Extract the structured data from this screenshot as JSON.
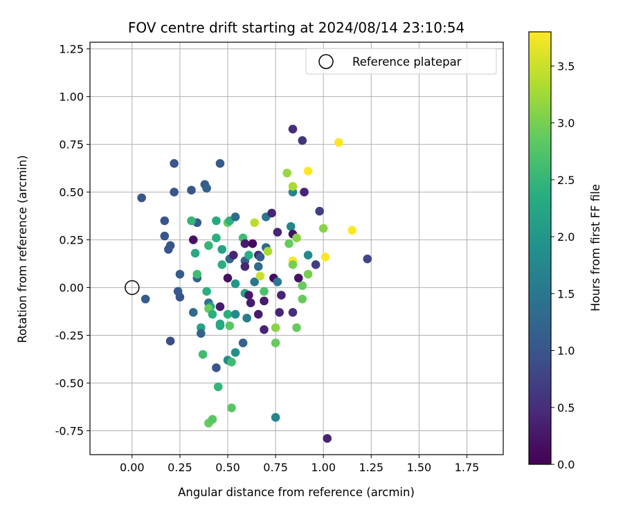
{
  "chart_data": {
    "type": "scatter",
    "title": "FOV centre drift starting at 2024/08/14 23:10:54",
    "xlabel": "Angular distance from reference (arcmin)",
    "ylabel": "Rotation from reference (arcmin)",
    "xlim": [
      -0.22,
      1.94
    ],
    "ylim": [
      -0.875,
      1.285
    ],
    "xticks": [
      "0.00",
      "0.25",
      "0.50",
      "0.75",
      "1.00",
      "1.25",
      "1.50",
      "1.75"
    ],
    "xtick_values": [
      0,
      0.25,
      0.5,
      0.75,
      1.0,
      1.25,
      1.5,
      1.75
    ],
    "yticks": [
      "1.25",
      "1.00",
      "0.75",
      "0.50",
      "0.25",
      "0.00",
      "-0.25",
      "-0.50",
      "-0.75"
    ],
    "ytick_values": [
      1.25,
      1.0,
      0.75,
      0.5,
      0.25,
      0.0,
      -0.25,
      -0.5,
      -0.75
    ],
    "grid": true,
    "legend": {
      "placement": "top-right",
      "entries": [
        {
          "marker": "open-circle",
          "label": "Reference platepar"
        }
      ]
    },
    "reference_point": {
      "x": 0.0,
      "y": 0.0
    },
    "colorbar": {
      "label": "Hours from first FF file",
      "colormap": "viridis",
      "range": [
        0,
        3.8
      ],
      "ticks": [
        "0.0",
        "0.5",
        "1.0",
        "1.5",
        "2.0",
        "2.5",
        "3.0",
        "3.5"
      ],
      "tick_values": [
        0.0,
        0.5,
        1.0,
        1.5,
        2.0,
        2.5,
        3.0,
        3.5
      ]
    },
    "points": [
      {
        "x": 0.05,
        "y": 0.47,
        "c": 1.0
      },
      {
        "x": 0.07,
        "y": -0.06,
        "c": 1.1
      },
      {
        "x": 0.19,
        "y": 0.2,
        "c": 1.0
      },
      {
        "x": 0.2,
        "y": 0.22,
        "c": 1.0
      },
      {
        "x": 0.17,
        "y": 0.35,
        "c": 1.0
      },
      {
        "x": 0.17,
        "y": 0.27,
        "c": 1.0
      },
      {
        "x": 0.22,
        "y": 0.65,
        "c": 1.0
      },
      {
        "x": 0.22,
        "y": 0.5,
        "c": 1.0
      },
      {
        "x": 0.2,
        "y": -0.28,
        "c": 0.9
      },
      {
        "x": 0.25,
        "y": 0.07,
        "c": 1.1
      },
      {
        "x": 0.24,
        "y": -0.02,
        "c": 1.1
      },
      {
        "x": 0.25,
        "y": -0.05,
        "c": 1.0
      },
      {
        "x": 0.31,
        "y": 0.51,
        "c": 1.0
      },
      {
        "x": 0.32,
        "y": 0.25,
        "c": 0.2
      },
      {
        "x": 0.32,
        "y": -0.13,
        "c": 1.3
      },
      {
        "x": 0.34,
        "y": 0.34,
        "c": 1.1
      },
      {
        "x": 0.34,
        "y": 0.05,
        "c": 1.2
      },
      {
        "x": 0.31,
        "y": 0.35,
        "c": 2.5
      },
      {
        "x": 0.33,
        "y": 0.18,
        "c": 2.3
      },
      {
        "x": 0.34,
        "y": 0.07,
        "c": 2.6
      },
      {
        "x": 0.36,
        "y": -0.21,
        "c": 2.2
      },
      {
        "x": 0.36,
        "y": -0.24,
        "c": 1.2
      },
      {
        "x": 0.37,
        "y": -0.35,
        "c": 2.6
      },
      {
        "x": 0.38,
        "y": 0.54,
        "c": 1.1
      },
      {
        "x": 0.39,
        "y": 0.52,
        "c": 1.2
      },
      {
        "x": 0.39,
        "y": -0.02,
        "c": 2.4
      },
      {
        "x": 0.4,
        "y": 0.22,
        "c": 2.5
      },
      {
        "x": 0.4,
        "y": -0.08,
        "c": 1.4
      },
      {
        "x": 0.41,
        "y": -0.1,
        "c": 2.2
      },
      {
        "x": 0.4,
        "y": -0.11,
        "c": 2.9
      },
      {
        "x": 0.42,
        "y": -0.14,
        "c": 2.4
      },
      {
        "x": 0.4,
        "y": -0.71,
        "c": 2.9
      },
      {
        "x": 0.42,
        "y": -0.69,
        "c": 2.8
      },
      {
        "x": 0.44,
        "y": 0.26,
        "c": 2.4
      },
      {
        "x": 0.44,
        "y": 0.35,
        "c": 2.3
      },
      {
        "x": 0.44,
        "y": -0.42,
        "c": 1.0
      },
      {
        "x": 0.46,
        "y": 0.65,
        "c": 1.1
      },
      {
        "x": 0.46,
        "y": -0.1,
        "c": 0.3
      },
      {
        "x": 0.46,
        "y": -0.19,
        "c": 2.3
      },
      {
        "x": 0.46,
        "y": -0.2,
        "c": 2.3
      },
      {
        "x": 0.47,
        "y": 0.12,
        "c": 2.4
      },
      {
        "x": 0.47,
        "y": 0.2,
        "c": 2.2
      },
      {
        "x": 0.45,
        "y": -0.52,
        "c": 2.5
      },
      {
        "x": 0.5,
        "y": 0.34,
        "c": 2.9
      },
      {
        "x": 0.51,
        "y": 0.35,
        "c": 2.4
      },
      {
        "x": 0.5,
        "y": 0.05,
        "c": 0.2
      },
      {
        "x": 0.5,
        "y": -0.14,
        "c": 2.4
      },
      {
        "x": 0.51,
        "y": -0.2,
        "c": 2.8
      },
      {
        "x": 0.5,
        "y": -0.38,
        "c": 1.8
      },
      {
        "x": 0.51,
        "y": 0.15,
        "c": 1.2
      },
      {
        "x": 0.53,
        "y": 0.17,
        "c": 0.4
      },
      {
        "x": 0.52,
        "y": -0.39,
        "c": 2.6
      },
      {
        "x": 0.52,
        "y": -0.63,
        "c": 2.8
      },
      {
        "x": 0.54,
        "y": 0.37,
        "c": 1.3
      },
      {
        "x": 0.54,
        "y": 0.02,
        "c": 2.0
      },
      {
        "x": 0.54,
        "y": -0.14,
        "c": 1.8
      },
      {
        "x": 0.54,
        "y": -0.34,
        "c": 1.9
      },
      {
        "x": 0.58,
        "y": 0.26,
        "c": 2.6
      },
      {
        "x": 0.59,
        "y": 0.23,
        "c": 0.3
      },
      {
        "x": 0.59,
        "y": 0.14,
        "c": 1.2
      },
      {
        "x": 0.59,
        "y": 0.11,
        "c": 0.4
      },
      {
        "x": 0.58,
        "y": -0.29,
        "c": 1.2
      },
      {
        "x": 0.59,
        "y": -0.03,
        "c": 2.2
      },
      {
        "x": 0.6,
        "y": -0.16,
        "c": 1.6
      },
      {
        "x": 0.61,
        "y": 0.17,
        "c": 2.4
      },
      {
        "x": 0.61,
        "y": -0.04,
        "c": 0.3
      },
      {
        "x": 0.62,
        "y": -0.08,
        "c": 0.3
      },
      {
        "x": 0.63,
        "y": 0.23,
        "c": 0.1
      },
      {
        "x": 0.64,
        "y": 0.03,
        "c": 1.5
      },
      {
        "x": 0.64,
        "y": 0.34,
        "c": 3.4
      },
      {
        "x": 0.66,
        "y": 0.17,
        "c": 0.4
      },
      {
        "x": 0.66,
        "y": 0.11,
        "c": 1.3
      },
      {
        "x": 0.67,
        "y": 0.06,
        "c": 3.5
      },
      {
        "x": 0.67,
        "y": 0.16,
        "c": 1.1
      },
      {
        "x": 0.66,
        "y": -0.14,
        "c": 0.3
      },
      {
        "x": 0.69,
        "y": -0.07,
        "c": 0.3
      },
      {
        "x": 0.69,
        "y": -0.02,
        "c": 2.7
      },
      {
        "x": 0.7,
        "y": 0.21,
        "c": 1.3
      },
      {
        "x": 0.69,
        "y": -0.22,
        "c": 0.4
      },
      {
        "x": 0.7,
        "y": 0.37,
        "c": 1.5
      },
      {
        "x": 0.71,
        "y": 0.19,
        "c": 3.3
      },
      {
        "x": 0.73,
        "y": 0.39,
        "c": 0.4
      },
      {
        "x": 0.74,
        "y": 0.05,
        "c": 0.1
      },
      {
        "x": 0.75,
        "y": -0.21,
        "c": 3.1
      },
      {
        "x": 0.75,
        "y": -0.29,
        "c": 2.9
      },
      {
        "x": 0.76,
        "y": 0.29,
        "c": 0.4
      },
      {
        "x": 0.76,
        "y": 0.03,
        "c": 1.5
      },
      {
        "x": 0.75,
        "y": -0.68,
        "c": 1.7
      },
      {
        "x": 0.77,
        "y": -0.13,
        "c": 0.4
      },
      {
        "x": 0.78,
        "y": -0.04,
        "c": 0.4
      },
      {
        "x": 0.81,
        "y": 0.6,
        "c": 3.2
      },
      {
        "x": 0.82,
        "y": 0.23,
        "c": 2.9
      },
      {
        "x": 0.83,
        "y": 0.32,
        "c": 1.7
      },
      {
        "x": 0.84,
        "y": 0.5,
        "c": 1.7
      },
      {
        "x": 0.84,
        "y": 0.53,
        "c": 3.3
      },
      {
        "x": 0.84,
        "y": 0.83,
        "c": 0.5
      },
      {
        "x": 0.84,
        "y": 0.28,
        "c": 0.2
      },
      {
        "x": 0.84,
        "y": 0.14,
        "c": 3.8
      },
      {
        "x": 0.84,
        "y": 0.12,
        "c": 3.0
      },
      {
        "x": 0.84,
        "y": -0.13,
        "c": 0.5
      },
      {
        "x": 0.86,
        "y": 0.26,
        "c": 3.1
      },
      {
        "x": 0.87,
        "y": 0.05,
        "c": 0.2
      },
      {
        "x": 0.86,
        "y": -0.21,
        "c": 2.9
      },
      {
        "x": 0.89,
        "y": 0.77,
        "c": 0.6
      },
      {
        "x": 0.89,
        "y": 0.01,
        "c": 2.9
      },
      {
        "x": 0.89,
        "y": -0.06,
        "c": 2.9
      },
      {
        "x": 0.9,
        "y": 0.5,
        "c": 0.4
      },
      {
        "x": 0.92,
        "y": 0.61,
        "c": 3.8
      },
      {
        "x": 0.92,
        "y": 0.17,
        "c": 1.8
      },
      {
        "x": 0.92,
        "y": 0.07,
        "c": 3.0
      },
      {
        "x": 0.96,
        "y": 0.12,
        "c": 0.7
      },
      {
        "x": 0.98,
        "y": 0.4,
        "c": 0.7
      },
      {
        "x": 1.0,
        "y": 0.31,
        "c": 3.1
      },
      {
        "x": 1.01,
        "y": 0.16,
        "c": 3.8
      },
      {
        "x": 1.02,
        "y": -0.79,
        "c": 0.4
      },
      {
        "x": 1.08,
        "y": 0.76,
        "c": 3.8
      },
      {
        "x": 1.15,
        "y": 0.3,
        "c": 3.8
      },
      {
        "x": 1.23,
        "y": 0.15,
        "c": 0.8
      }
    ]
  }
}
